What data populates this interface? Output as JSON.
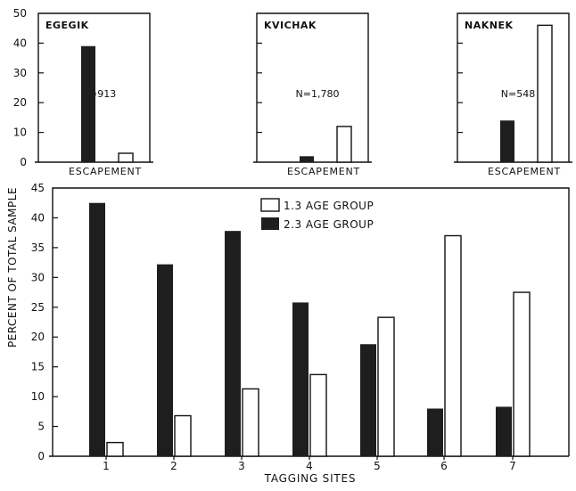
{
  "y_axis_label": "PERCENT OF TOTAL SAMPLE",
  "colors": {
    "dark_bar": "#1e1e1e",
    "open_bar_fill": "#ffffff",
    "stroke": "#111111"
  },
  "chart_data": [
    {
      "type": "bar",
      "title": "EGEGIK",
      "annotation": "N=913",
      "categories": [
        "ESCAPEMENT"
      ],
      "series": [
        {
          "name": "2.3 AGE GROUP",
          "values": [
            39
          ]
        },
        {
          "name": "1.3 AGE GROUP",
          "values": [
            3
          ]
        }
      ],
      "ylim": [
        0,
        50
      ],
      "yticks": [
        "0",
        "10",
        "20",
        "30",
        "40",
        "50"
      ],
      "xlabel": "ESCAPEMENT"
    },
    {
      "type": "bar",
      "title": "KVICHAK",
      "annotation": "N=1,780",
      "categories": [
        "ESCAPEMENT"
      ],
      "series": [
        {
          "name": "2.3 AGE GROUP",
          "values": [
            2
          ]
        },
        {
          "name": "1.3 AGE GROUP",
          "values": [
            12
          ]
        }
      ],
      "ylim": [
        0,
        50
      ],
      "xlabel": "ESCAPEMENT"
    },
    {
      "type": "bar",
      "title": "NAKNEK",
      "annotation": "N=548",
      "categories": [
        "ESCAPEMENT"
      ],
      "series": [
        {
          "name": "2.3 AGE GROUP",
          "values": [
            14
          ]
        },
        {
          "name": "1.3 AGE GROUP",
          "values": [
            46
          ]
        }
      ],
      "ylim": [
        0,
        50
      ],
      "xlabel": "ESCAPEMENT"
    },
    {
      "type": "bar",
      "categories": [
        "1",
        "2",
        "3",
        "4",
        "5",
        "6",
        "7"
      ],
      "series": [
        {
          "name": "2.3 AGE GROUP",
          "values": [
            42.5,
            32.2,
            37.8,
            25.8,
            18.8,
            8.0,
            8.3
          ]
        },
        {
          "name": "1.3 AGE GROUP",
          "values": [
            2.3,
            6.8,
            11.3,
            13.7,
            23.3,
            37.0,
            27.5
          ]
        }
      ],
      "xlabel": "TAGGING SITES",
      "ylim": [
        0,
        45
      ],
      "yticks": [
        "0",
        "5",
        "10",
        "15",
        "20",
        "25",
        "30",
        "35",
        "40",
        "45"
      ],
      "legend": [
        "1.3 AGE GROUP",
        "2.3 AGE GROUP"
      ]
    }
  ]
}
